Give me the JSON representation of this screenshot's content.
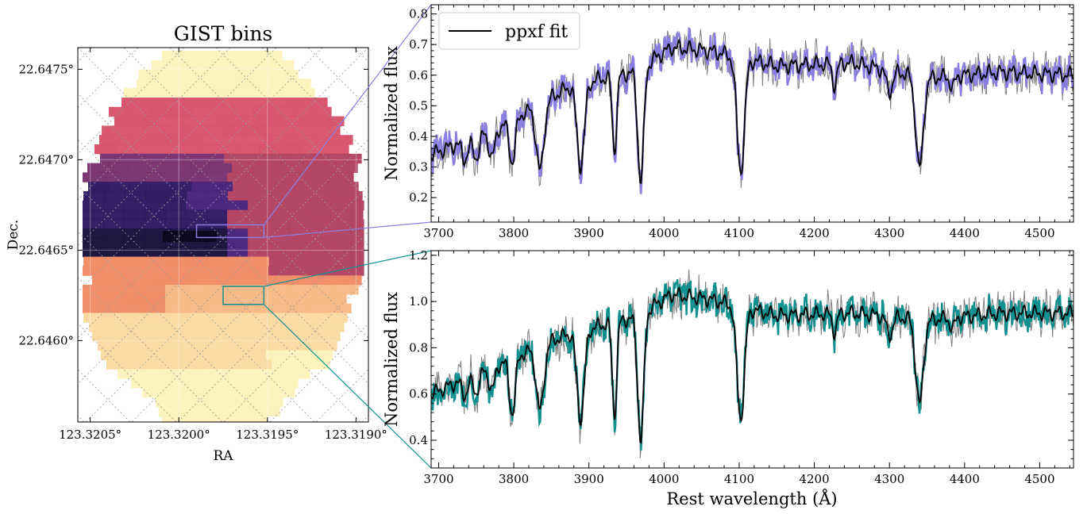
{
  "colors": {
    "spectrum_top": "#8a7fe0",
    "spectrum_bottom": "#119090",
    "model": "#000000",
    "observed_gray": "#808080",
    "bins_palette": [
      "#160e3a",
      "#2c1760",
      "#45207a",
      "#77306f",
      "#b0405f",
      "#d8506a",
      "#f08a64",
      "#f7b884",
      "#fbd9a0",
      "#fcf2bb"
    ]
  },
  "chart_data": [
    {
      "type": "heatmap",
      "title": "GIST bins",
      "xlabel": "RA",
      "ylabel": "Dec.",
      "x_tick_labels": [
        "123.3205°",
        "123.3200°",
        "123.3195°",
        "123.3190°"
      ],
      "y_tick_labels": [
        "22.6475°",
        "22.6470°",
        "22.6465°",
        "22.6460°"
      ],
      "x_ticks": [
        123.3205,
        123.32,
        123.3195,
        123.319
      ],
      "y_ticks": [
        22.6475,
        22.647,
        22.6465,
        22.646
      ],
      "xlim": [
        123.32057,
        123.31893
      ],
      "ylim": [
        22.64555,
        22.64762
      ],
      "grid": true,
      "colormap": "magma",
      "highlighted_bins": [
        {
          "color": "#8a7fe0",
          "ra": [
            123.3199,
            123.31952
          ],
          "dec": [
            22.64657,
            22.64664
          ]
        },
        {
          "color": "#119090",
          "ra": [
            123.31975,
            123.31952
          ],
          "dec": [
            22.6462,
            22.6463
          ]
        }
      ]
    },
    {
      "type": "line",
      "ylabel": "Normalized flux",
      "xlabel": "",
      "xlim": [
        3690,
        4545
      ],
      "ylim": [
        0.12,
        0.83
      ],
      "x_tick_labels": [
        "3700",
        "3800",
        "3900",
        "4000",
        "4100",
        "4200",
        "4300",
        "4400",
        "4500"
      ],
      "y_tick_labels": [
        "0.2",
        "0.3",
        "0.4",
        "0.5",
        "0.6",
        "0.7",
        "0.8"
      ],
      "x_ticks": [
        3700,
        3800,
        3900,
        4000,
        4100,
        4200,
        4300,
        4400,
        4500
      ],
      "y_ticks": [
        0.2,
        0.3,
        0.4,
        0.5,
        0.6,
        0.7,
        0.8
      ],
      "legend": {
        "label": "ppxf fit",
        "position": "top-left"
      },
      "continuum": {
        "x": [
          3690,
          3780,
          3880,
          3960,
          4010,
          4060,
          4150,
          4250,
          4350,
          4450,
          4545
        ],
        "y": [
          0.34,
          0.43,
          0.57,
          0.61,
          0.69,
          0.68,
          0.63,
          0.64,
          0.59,
          0.61,
          0.6
        ]
      },
      "absorption_lines": [
        {
          "x": 3735,
          "depth": 0.06,
          "width": 4
        },
        {
          "x": 3750,
          "depth": 0.07,
          "width": 4
        },
        {
          "x": 3771,
          "depth": 0.09,
          "width": 4
        },
        {
          "x": 3798,
          "depth": 0.14,
          "width": 4
        },
        {
          "x": 3835,
          "depth": 0.22,
          "width": 5
        },
        {
          "x": 3889,
          "depth": 0.27,
          "width": 5
        },
        {
          "x": 3934,
          "depth": 0.24,
          "width": 3
        },
        {
          "x": 3969,
          "depth": 0.37,
          "width": 4
        },
        {
          "x": 4102,
          "depth": 0.37,
          "width": 5
        },
        {
          "x": 4227,
          "depth": 0.07,
          "width": 3
        },
        {
          "x": 4300,
          "depth": 0.07,
          "width": 4
        },
        {
          "x": 4340,
          "depth": 0.3,
          "width": 5
        },
        {
          "x": 4384,
          "depth": 0.04,
          "width": 3
        }
      ],
      "noise_amplitude": 0.045,
      "model_ripple": 0.028
    },
    {
      "type": "line",
      "ylabel": "Normalized flux",
      "xlabel": "Rest wavelength (Å)",
      "xlim": [
        3690,
        4545
      ],
      "ylim": [
        0.28,
        1.22
      ],
      "x_tick_labels": [
        "3700",
        "3800",
        "3900",
        "4000",
        "4100",
        "4200",
        "4300",
        "4400",
        "4500"
      ],
      "y_tick_labels": [
        "0.4",
        "0.6",
        "0.8",
        "1.0",
        "1.2"
      ],
      "x_ticks": [
        3700,
        3800,
        3900,
        4000,
        4100,
        4200,
        4300,
        4400,
        4500
      ],
      "y_ticks": [
        0.4,
        0.6,
        0.8,
        1.0,
        1.2
      ],
      "continuum": {
        "x": [
          3690,
          3780,
          3880,
          3960,
          4010,
          4060,
          4150,
          4250,
          4350,
          4450,
          4545
        ],
        "y": [
          0.6,
          0.73,
          0.87,
          0.93,
          1.03,
          1.01,
          0.94,
          0.95,
          0.92,
          0.95,
          0.95
        ]
      },
      "absorption_lines": [
        {
          "x": 3735,
          "depth": 0.07,
          "width": 4
        },
        {
          "x": 3750,
          "depth": 0.08,
          "width": 4
        },
        {
          "x": 3771,
          "depth": 0.1,
          "width": 4
        },
        {
          "x": 3798,
          "depth": 0.24,
          "width": 4
        },
        {
          "x": 3835,
          "depth": 0.28,
          "width": 5
        },
        {
          "x": 3889,
          "depth": 0.38,
          "width": 5
        },
        {
          "x": 3934,
          "depth": 0.4,
          "width": 3
        },
        {
          "x": 3969,
          "depth": 0.55,
          "width": 4
        },
        {
          "x": 4102,
          "depth": 0.48,
          "width": 5
        },
        {
          "x": 4227,
          "depth": 0.08,
          "width": 3
        },
        {
          "x": 4300,
          "depth": 0.08,
          "width": 4
        },
        {
          "x": 4340,
          "depth": 0.37,
          "width": 5
        },
        {
          "x": 4384,
          "depth": 0.05,
          "width": 3
        }
      ],
      "noise_amplitude": 0.065,
      "model_ripple": 0.035
    }
  ]
}
